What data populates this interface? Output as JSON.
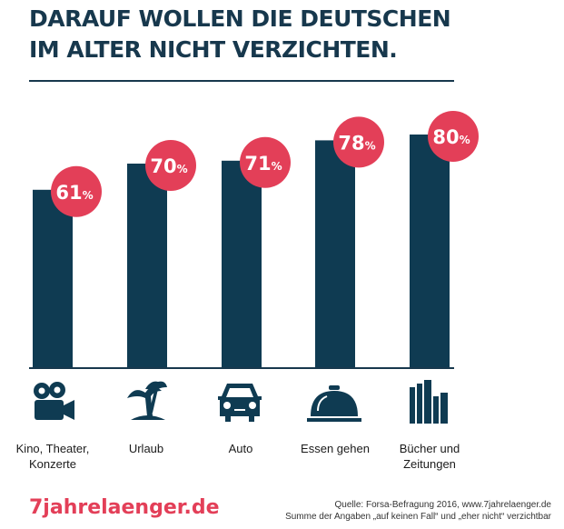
{
  "title_lines": [
    "DARAUF WOLLEN DIE DEUTSCHEN",
    "IM ALTER NICHT VERZICHTEN."
  ],
  "colors": {
    "bar": "#0f3b52",
    "badge": "#e33f58",
    "text": "#17384d"
  },
  "chart_data": {
    "type": "bar",
    "title": "DARAUF WOLLEN DIE DEUTSCHEN IM ALTER NICHT VERZICHTEN.",
    "categories": [
      "Kino, Theater, Konzerte",
      "Urlaub",
      "Auto",
      "Essen gehen",
      "Bücher und Zeitungen"
    ],
    "values": [
      61,
      70,
      71,
      78,
      80
    ],
    "value_labels": [
      "61",
      "70",
      "71",
      "78",
      "80"
    ],
    "unit": "%",
    "icons": [
      "movie-camera-icon",
      "palm-tree-icon",
      "car-icon",
      "food-cloche-icon",
      "books-icon"
    ],
    "xlabel": "",
    "ylabel": "",
    "grid": false
  },
  "labels": [
    [
      "Kino, Theater,",
      "Konzerte"
    ],
    [
      "Urlaub"
    ],
    [
      "Auto"
    ],
    [
      "Essen gehen"
    ],
    [
      "Bücher und",
      "Zeitungen"
    ]
  ],
  "brand": "7jahrelaenger.de",
  "source_line1": "Quelle: Forsa-Befragung 2016,  www.7jahrelaenger.de",
  "source_line2": "Summe der Angaben „auf keinen Fall“ und „eher nicht“ verzichtbar"
}
